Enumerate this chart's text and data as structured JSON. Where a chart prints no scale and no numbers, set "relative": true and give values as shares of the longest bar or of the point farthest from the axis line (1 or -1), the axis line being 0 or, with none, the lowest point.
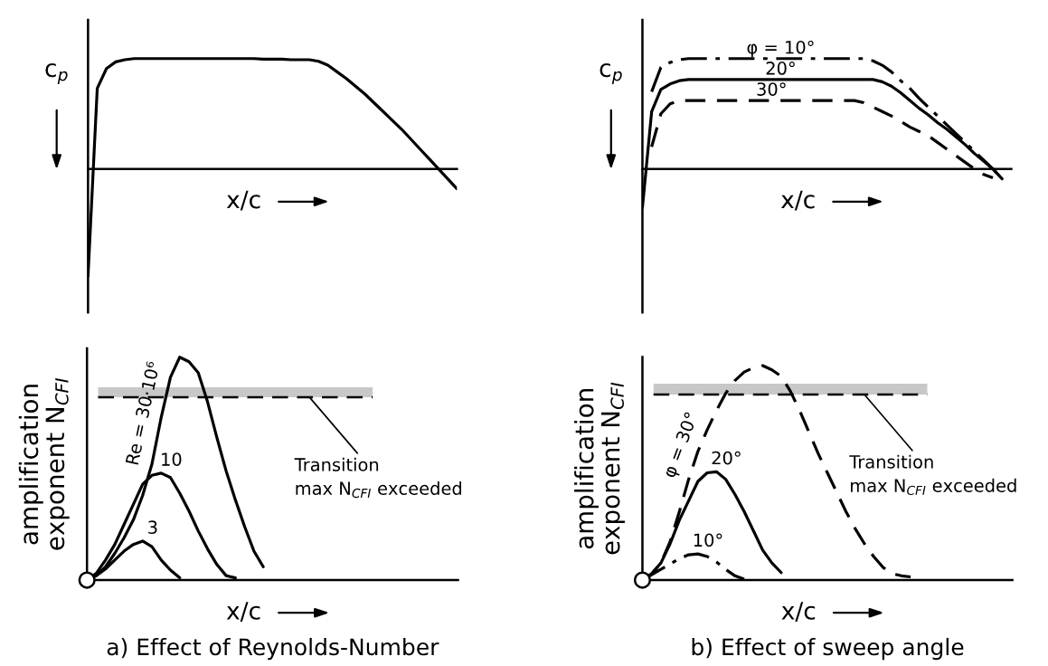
{
  "chart_data": [
    {
      "type": "line",
      "relative": true,
      "xlabel": "x/c",
      "ylabel": "c$_{p}$",
      "categories": [
        null,
        null,
        null,
        null,
        null,
        null,
        null,
        null,
        null,
        null,
        null,
        null,
        null,
        null,
        null,
        null,
        null,
        null,
        null,
        null,
        null,
        null,
        null,
        null,
        null,
        null,
        null,
        null,
        null,
        null,
        null,
        null,
        null,
        null,
        null,
        null,
        null,
        null,
        null,
        null,
        null
      ],
      "series": [
        {
          "color": "#000000",
          "line_style": "solid",
          "values": [
            -0.97,
            0.73,
            0.91,
            0.97,
            0.99,
            1.0,
            1.0,
            1.0,
            1.0,
            1.0,
            1.0,
            1.0,
            1.0,
            1.0,
            1.0,
            1.0,
            1.0,
            1.0,
            1.0,
            0.995,
            0.995,
            0.995,
            0.99,
            0.99,
            0.99,
            0.975,
            0.94,
            0.88,
            0.82,
            0.75,
            0.68,
            0.6,
            0.52,
            0.44,
            0.36,
            0.27,
            0.18,
            0.09,
            0.0,
            -0.09,
            -0.18
          ]
        }
      ]
    },
    {
      "type": "line",
      "relative": true,
      "xlabel": "x/c",
      "ylabel": "c$_{p}$",
      "categories": [
        null,
        null,
        null,
        null,
        null,
        null,
        null,
        null,
        null,
        null,
        null,
        null,
        null,
        null,
        null,
        null,
        null,
        null,
        null,
        null,
        null,
        null,
        null,
        null,
        null,
        null,
        null,
        null,
        null,
        null,
        null,
        null,
        null,
        null,
        null,
        null,
        null,
        null,
        null,
        null,
        null
      ],
      "series": [
        {
          "name": "φ = 10°",
          "color": "#000000",
          "line_style": "dashdot",
          "values": [
            null,
            0.7,
            0.92,
            0.965,
            0.99,
            1.0,
            1.0,
            1.0,
            1.0,
            1.0,
            1.0,
            1.0,
            1.0,
            1.0,
            1.0,
            1.0,
            1.0,
            1.0,
            1.0,
            1.0,
            1.0,
            1.0,
            1.0,
            1.0,
            1.0,
            0.98,
            0.94,
            0.88,
            0.8,
            0.73,
            0.64,
            0.56,
            0.48,
            0.4,
            0.32,
            0.24,
            0.16,
            0.08,
            0.0,
            -0.09,
            null
          ]
        },
        {
          "name": "20°",
          "color": "#000000",
          "line_style": "solid",
          "values": [
            -0.35,
            0.52,
            0.72,
            0.77,
            0.8,
            0.81,
            0.81,
            0.81,
            0.81,
            0.81,
            0.81,
            0.81,
            0.81,
            0.81,
            0.81,
            0.81,
            0.81,
            0.81,
            0.81,
            0.81,
            0.81,
            0.81,
            0.81,
            0.81,
            0.81,
            0.81,
            0.79,
            0.75,
            0.69,
            0.62,
            0.55,
            0.49,
            0.42,
            0.36,
            0.29,
            0.22,
            0.14,
            0.07,
            0.0,
            -0.09,
            null
          ]
        },
        {
          "name": "30°",
          "color": "#000000",
          "line_style": "dashed",
          "values": [
            null,
            0.2,
            0.5,
            0.59,
            0.62,
            0.62,
            0.62,
            0.62,
            0.62,
            0.62,
            0.62,
            0.62,
            0.62,
            0.62,
            0.62,
            0.62,
            0.62,
            0.62,
            0.62,
            0.62,
            0.62,
            0.62,
            0.62,
            0.62,
            0.6,
            0.56,
            0.52,
            0.48,
            0.43,
            0.38,
            0.34,
            0.3,
            0.24,
            0.18,
            0.12,
            0.06,
            0.0,
            -0.05,
            -0.08,
            null,
            null
          ]
        }
      ]
    },
    {
      "type": "line",
      "relative": true,
      "xlabel": "x/c",
      "ylabel": "amplification\nexponent N$_{CFI}$",
      "categories": [
        null,
        null,
        null,
        null,
        null,
        null,
        null,
        null,
        null,
        null,
        null,
        null,
        null,
        null,
        null,
        null,
        null,
        null,
        null,
        null,
        null,
        null,
        null,
        null,
        null,
        null,
        null,
        null,
        null,
        null,
        null,
        null,
        null,
        null,
        null,
        null,
        null,
        null,
        null,
        null,
        null
      ],
      "series": [
        {
          "name": "Re = 30·10⁶",
          "color": "#000000",
          "line_style": "solid",
          "values": [
            0,
            0.02,
            0.06,
            0.12,
            0.19,
            0.27,
            0.38,
            0.52,
            0.73,
            0.91,
            1.0,
            0.98,
            0.93,
            0.8,
            0.64,
            0.49,
            0.36,
            0.24,
            0.13,
            0.06,
            null,
            null,
            null,
            null,
            null,
            null,
            null,
            null,
            null,
            null,
            null,
            null,
            null,
            null,
            null,
            null,
            null,
            null,
            null,
            null,
            null
          ]
        },
        {
          "name": "10",
          "color": "#000000",
          "line_style": "solid",
          "values": [
            0,
            0.03,
            0.09,
            0.16,
            0.25,
            0.34,
            0.43,
            0.47,
            0.48,
            0.46,
            0.39,
            0.31,
            0.22,
            0.14,
            0.07,
            0.02,
            0.01,
            null,
            null,
            null,
            null,
            null,
            null,
            null,
            null,
            null,
            null,
            null,
            null,
            null,
            null,
            null,
            null,
            null,
            null,
            null,
            null,
            null,
            null,
            null,
            null
          ]
        },
        {
          "name": "3",
          "color": "#000000",
          "line_style": "solid",
          "values": [
            0,
            0.02,
            0.05,
            0.09,
            0.13,
            0.16,
            0.175,
            0.15,
            0.09,
            0.045,
            0.01,
            null,
            null,
            null,
            null,
            null,
            null,
            null,
            null,
            null,
            null,
            null,
            null,
            null,
            null,
            null,
            null,
            null,
            null,
            null,
            null,
            null,
            null,
            null,
            null,
            null,
            null,
            null,
            null,
            null,
            null
          ]
        }
      ],
      "bands": [
        {
          "axis": "y",
          "from": 0.82,
          "to": 0.865,
          "color": "#c8c8c8"
        }
      ],
      "ref_lines": [
        {
          "axis": "y",
          "value": 0.82,
          "label": "Transition\nmax N$_{CFI}$ exceeded",
          "color": "#000000",
          "line_style": "dashed"
        }
      ],
      "annotations": [
        "a) Effect of Reynolds-Number"
      ]
    },
    {
      "type": "line",
      "relative": true,
      "xlabel": "x/c",
      "ylabel": "amplification\nexponent N$_{CFI}$",
      "categories": [
        null,
        null,
        null,
        null,
        null,
        null,
        null,
        null,
        null,
        null,
        null,
        null,
        null,
        null,
        null,
        null,
        null,
        null,
        null,
        null,
        null,
        null,
        null,
        null,
        null,
        null,
        null,
        null,
        null,
        null,
        null,
        null,
        null,
        null,
        null,
        null,
        null,
        null,
        null,
        null,
        null
      ],
      "series": [
        {
          "name": "φ = 30°",
          "color": "#000000",
          "line_style": "dashed",
          "values": [
            0,
            0.03,
            0.08,
            0.18,
            0.32,
            0.47,
            0.6,
            0.7,
            0.79,
            0.87,
            0.93,
            0.97,
            0.99,
            1.0,
            0.98,
            0.95,
            0.88,
            0.79,
            0.69,
            0.59,
            0.5,
            0.41,
            0.32,
            0.24,
            0.17,
            0.11,
            0.06,
            0.03,
            0.02,
            0.015,
            null,
            null,
            null,
            null,
            null,
            null,
            null,
            null,
            null,
            null,
            null
          ]
        },
        {
          "name": "20°",
          "color": "#000000",
          "line_style": "solid",
          "values": [
            0,
            0.03,
            0.08,
            0.17,
            0.28,
            0.37,
            0.46,
            0.5,
            0.505,
            0.47,
            0.4,
            0.32,
            0.23,
            0.14,
            0.08,
            0.035,
            null,
            null,
            null,
            null,
            null,
            null,
            null,
            null,
            null,
            null,
            null,
            null,
            null,
            null,
            null,
            null,
            null,
            null,
            null,
            null,
            null,
            null,
            null,
            null,
            null
          ]
        },
        {
          "name": "10°",
          "color": "#000000",
          "line_style": "dashdot",
          "values": [
            0,
            0.025,
            0.05,
            0.075,
            0.1,
            0.118,
            0.122,
            0.11,
            0.085,
            0.05,
            0.02,
            0.004,
            null,
            null,
            null,
            null,
            null,
            null,
            null,
            null,
            null,
            null,
            null,
            null,
            null,
            null,
            null,
            null,
            null,
            null,
            null,
            null,
            null,
            null,
            null,
            null,
            null,
            null,
            null,
            null,
            null
          ]
        }
      ],
      "bands": [
        {
          "axis": "y",
          "from": 0.865,
          "to": 0.916,
          "color": "#c8c8c8"
        }
      ],
      "ref_lines": [
        {
          "axis": "y",
          "value": 0.865,
          "label": "Transition\nmax N$_{CFI}$ exceeded",
          "color": "#000000",
          "line_style": "dashed"
        }
      ],
      "annotations": [
        "b) Effect of sweep angle"
      ]
    }
  ]
}
